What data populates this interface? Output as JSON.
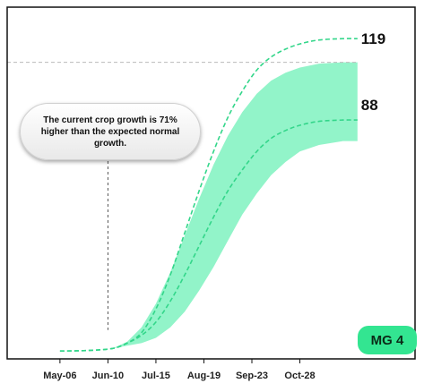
{
  "chart_data": {
    "type": "line",
    "x_tick_labels": [
      "May-06",
      "Jun-10",
      "Jul-15",
      "Aug-19",
      "Sep-23",
      "Oct-28"
    ],
    "series": [
      {
        "style": "dashed",
        "color": "#33d68a",
        "x": [
          0,
          3,
          5.5,
          7,
          8.5,
          10,
          11.5,
          13,
          14.5,
          16,
          17.5,
          19,
          20.5,
          22,
          23.5,
          25,
          27,
          29.5,
          31
        ],
        "values": [
          0,
          0.2,
          1,
          3,
          7,
          16,
          29,
          45,
          61,
          76,
          89,
          99,
          107,
          112,
          115,
          117,
          118.5,
          119,
          119
        ],
        "end_label": "119"
      },
      {
        "style": "dashed",
        "color": "#33d68a",
        "x": [
          0,
          3,
          5.5,
          7,
          8.5,
          10,
          11.5,
          13,
          14.5,
          16,
          17.5,
          19,
          20.5,
          22,
          23.5,
          25,
          27,
          29.5,
          31
        ],
        "values": [
          0,
          0.2,
          1,
          3,
          6,
          11,
          19,
          29,
          40,
          51,
          61,
          69,
          76,
          81,
          84,
          86,
          87.5,
          88,
          88
        ],
        "end_label": "88"
      }
    ],
    "band": {
      "color": "#7ff2c0",
      "x": [
        0,
        3,
        5.5,
        7,
        8.5,
        10,
        11.5,
        13,
        14.5,
        16,
        17.5,
        19,
        20.5,
        22,
        23.5,
        25,
        27,
        29.5,
        31
      ],
      "upper": [
        0,
        0.2,
        1,
        3.5,
        9,
        18,
        30,
        44,
        58,
        71,
        82,
        91,
        98,
        103,
        106,
        108,
        109.5,
        110,
        110
      ],
      "lower": [
        0,
        0.2,
        1,
        2,
        3,
        5,
        9,
        15,
        23,
        32,
        42,
        52,
        60,
        67,
        72,
        76,
        78.5,
        80,
        80
      ]
    },
    "reference_line": {
      "value": 110,
      "style": "dashed",
      "color": "#bbbbbb"
    },
    "marker_line": {
      "x_tick": "Jun-10",
      "style": "dashed",
      "color": "#555555"
    },
    "annotation": "The current crop growth is 71% higher than the expected normal growth.",
    "badge": "MG 4",
    "xlim": [
      -5.5,
      37
    ],
    "ylim": [
      -3,
      131
    ],
    "grid": false,
    "axes_frame": "black border on all sides"
  }
}
